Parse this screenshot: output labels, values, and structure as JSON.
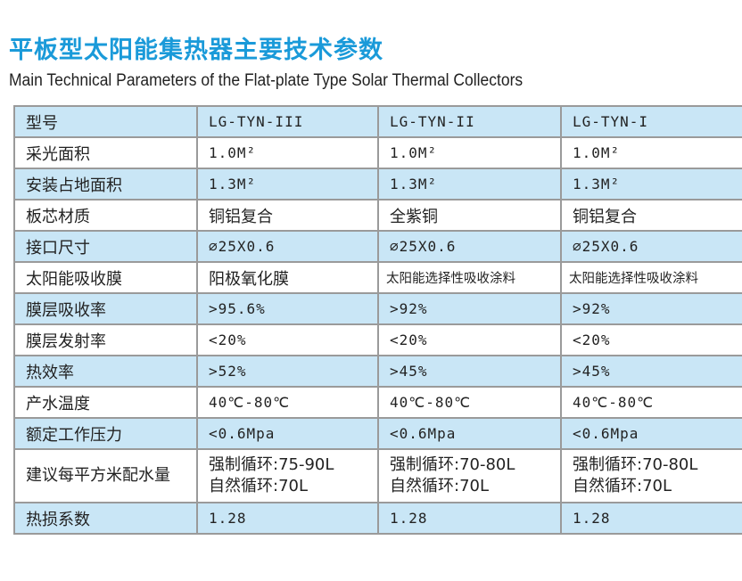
{
  "title": "平板型太阳能集热器主要技术参数",
  "subtitle": "Main Technical Parameters of the Flat-plate Type Solar Thermal Collectors",
  "colors": {
    "title": "#1a9ad9",
    "row_highlight": "#c9e6f6",
    "border": "#9a9a9a"
  },
  "table": {
    "header": [
      "型号",
      "LG-TYN-III",
      "LG-TYN-II",
      "LG-TYN-I"
    ],
    "rows": [
      {
        "label": "采光面积",
        "values": [
          "1.0M²",
          "1.0M²",
          "1.0M²"
        ]
      },
      {
        "label": "安装占地面积",
        "values": [
          "1.3M²",
          "1.3M²",
          "1.3M²"
        ]
      },
      {
        "label": "板芯材质",
        "values": [
          "铜铝复合",
          "全紫铜",
          "铜铝复合"
        ]
      },
      {
        "label": "接口尺寸",
        "values": [
          "⌀25X0.6",
          "⌀25X0.6",
          "⌀25X0.6"
        ]
      },
      {
        "label": "太阳能吸收膜",
        "values": [
          "阳极氧化膜",
          "太阳能选择性吸收涂料",
          "太阳能选择性吸收涂料"
        ]
      },
      {
        "label": "膜层吸收率",
        "values": [
          ">95.6%",
          ">92%",
          ">92%"
        ]
      },
      {
        "label": "膜层发射率",
        "values": [
          "<20%",
          "<20%",
          "<20%"
        ]
      },
      {
        "label": "热效率",
        "values": [
          ">52%",
          ">45%",
          ">45%"
        ]
      },
      {
        "label": "产水温度",
        "values": [
          "40℃-80℃",
          "40℃-80℃",
          "40℃-80℃"
        ]
      },
      {
        "label": "额定工作压力",
        "values": [
          "<0.6Mpa",
          "<0.6Mpa",
          "<0.6Mpa"
        ]
      },
      {
        "label": "建议每平方米配水量",
        "values": [
          [
            "强制循环:75-90L",
            "自然循环:70L"
          ],
          [
            "强制循环:70-80L",
            "自然循环:70L"
          ],
          [
            "强制循环:70-80L",
            "自然循环:70L"
          ]
        ]
      },
      {
        "label": "热损系数",
        "values": [
          "1.28",
          "1.28",
          "1.28"
        ]
      }
    ]
  }
}
